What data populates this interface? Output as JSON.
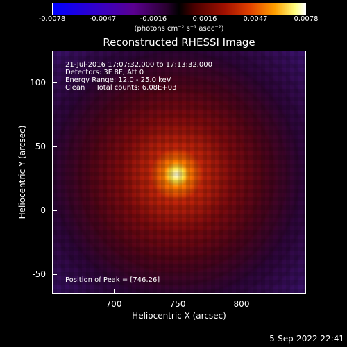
{
  "colorbar": {
    "ticks": [
      "-0.0078",
      "-0.0047",
      "-0.0016",
      "0.0016",
      "0.0047",
      "0.0078"
    ],
    "units": "(photons cm⁻² s⁻¹ asec⁻²)"
  },
  "title": "Reconstructed RHESSI Image",
  "info": {
    "time_range": "21-Jul-2016 17:07:32.000 to 17:13:32.000",
    "detectors": "Detectors: 3F 8F, Att 0",
    "energy": "Energy Range: 12.0 - 25.0 keV",
    "clean": "Clean     Total counts: 6.08E+03"
  },
  "peak": "Position of Peak = [746,26]",
  "axes": {
    "xlabel": "Heliocentric X (arcsec)",
    "ylabel": "Heliocentric Y (arcsec)",
    "xticks": [
      "700",
      "750",
      "800"
    ],
    "yticks": [
      "100",
      "50",
      "0",
      "-50"
    ]
  },
  "timestamp": "5-Sep-2022 22:41"
}
